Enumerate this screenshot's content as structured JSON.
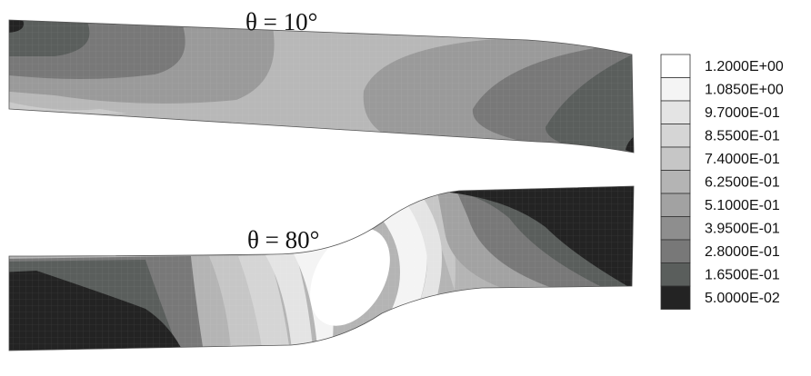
{
  "labels": {
    "top": "θ = 10°",
    "bottom": "θ = 80°"
  },
  "legend": {
    "entries": [
      {
        "label": "1.2000E+00",
        "color": "#ffffff"
      },
      {
        "label": "1.0850E+00",
        "color": "#f4f4f4"
      },
      {
        "label": "9.7000E-01",
        "color": "#e4e4e4"
      },
      {
        "label": "8.5500E-01",
        "color": "#d5d5d5"
      },
      {
        "label": "7.4000E-01",
        "color": "#c6c6c6"
      },
      {
        "label": "6.2500E-01",
        "color": "#b4b4b4"
      },
      {
        "label": "5.1000E-01",
        "color": "#a2a2a2"
      },
      {
        "label": "3.9500E-01",
        "color": "#8e8e8e"
      },
      {
        "label": "2.8000E-01",
        "color": "#787878"
      },
      {
        "label": "1.6500E-01",
        "color": "#5a5e5c"
      },
      {
        "label": "5.0000E-02",
        "color": "#232323"
      }
    ]
  }
}
